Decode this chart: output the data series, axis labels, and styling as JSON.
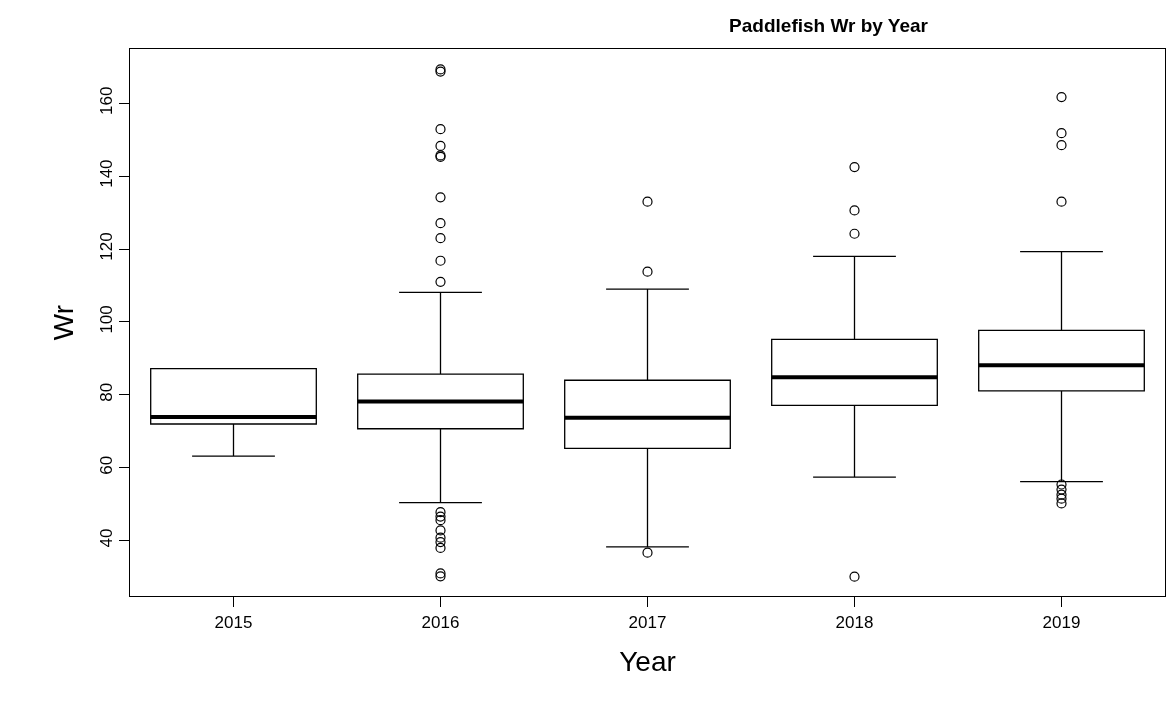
{
  "chart_data": {
    "type": "box",
    "title": "Paddlefish Wr by Year",
    "xlabel": "Year",
    "ylabel": "Wr",
    "categories": [
      "2015",
      "2016",
      "2017",
      "2018",
      "2019"
    ],
    "boxes": [
      {
        "low": 63.2,
        "q1": 72.0,
        "median": 73.9,
        "q3": 87.2,
        "high": 87.2
      },
      {
        "low": 50.4,
        "q1": 70.7,
        "median": 78.2,
        "q3": 85.7,
        "high": 108.1,
        "outliers": [
          169.3,
          168.7,
          152.9,
          148.3,
          145.7,
          145.3,
          134.2,
          127.1,
          123.0,
          116.8,
          111.0,
          47.8,
          46.6,
          45.6,
          42.8,
          40.8,
          39.6,
          38.0,
          31.0,
          30.2
        ]
      },
      {
        "low": 38.3,
        "q1": 65.3,
        "median": 73.7,
        "q3": 84.0,
        "high": 109.0,
        "outliers": [
          133.0,
          113.8,
          36.7
        ]
      },
      {
        "low": 57.4,
        "q1": 77.1,
        "median": 84.8,
        "q3": 95.2,
        "high": 118.0,
        "outliers": [
          142.5,
          130.6,
          124.2,
          30.1
        ]
      },
      {
        "low": 56.2,
        "q1": 81.1,
        "median": 88.1,
        "q3": 97.7,
        "high": 119.3,
        "outliers": [
          161.7,
          151.8,
          148.5,
          133.0,
          55.4,
          54.0,
          52.6,
          51.5,
          50.2
        ]
      }
    ],
    "color": "#000000",
    "ylim": [
      24.8,
      174.9
    ],
    "yticks": [
      40,
      60,
      80,
      100,
      120,
      140,
      160
    ],
    "marker": "circle"
  }
}
